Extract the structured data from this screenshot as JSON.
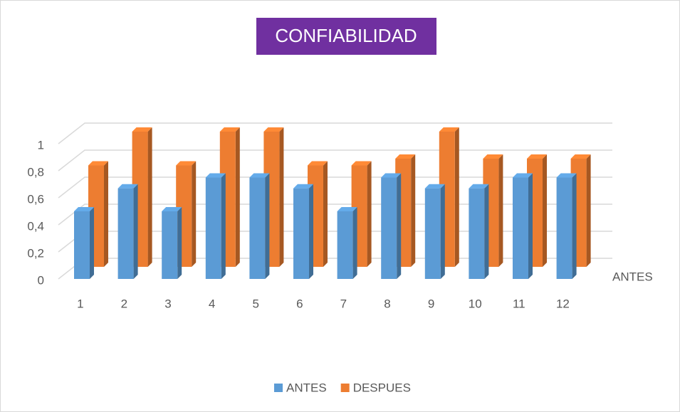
{
  "chart_data": {
    "type": "bar3d",
    "title": "CONFIABILIDAD",
    "categories": [
      "1",
      "2",
      "3",
      "4",
      "5",
      "6",
      "7",
      "8",
      "9",
      "10",
      "11",
      "12"
    ],
    "series": [
      {
        "name": "ANTES",
        "color": "#5b9bd5",
        "values": [
          0.5,
          0.67,
          0.5,
          0.75,
          0.75,
          0.67,
          0.5,
          0.75,
          0.67,
          0.67,
          0.75,
          0.75
        ]
      },
      {
        "name": "DESPUES",
        "color": "#ed7d31",
        "values": [
          0.75,
          1,
          0.75,
          1,
          1,
          0.75,
          0.75,
          0.8,
          1,
          0.8,
          0.8,
          0.8
        ]
      }
    ],
    "depth_axis_label": "ANTES",
    "ylim": [
      0,
      1
    ],
    "yticks": [
      0,
      {
        "value": 0.2,
        "label": "0,2"
      },
      {
        "value": 0.4,
        "label": "0,4"
      },
      {
        "value": 0.6,
        "label": "0,6"
      },
      {
        "value": 0.8,
        "label": "0,8"
      },
      1
    ],
    "grid": true,
    "legend": "bottom"
  }
}
